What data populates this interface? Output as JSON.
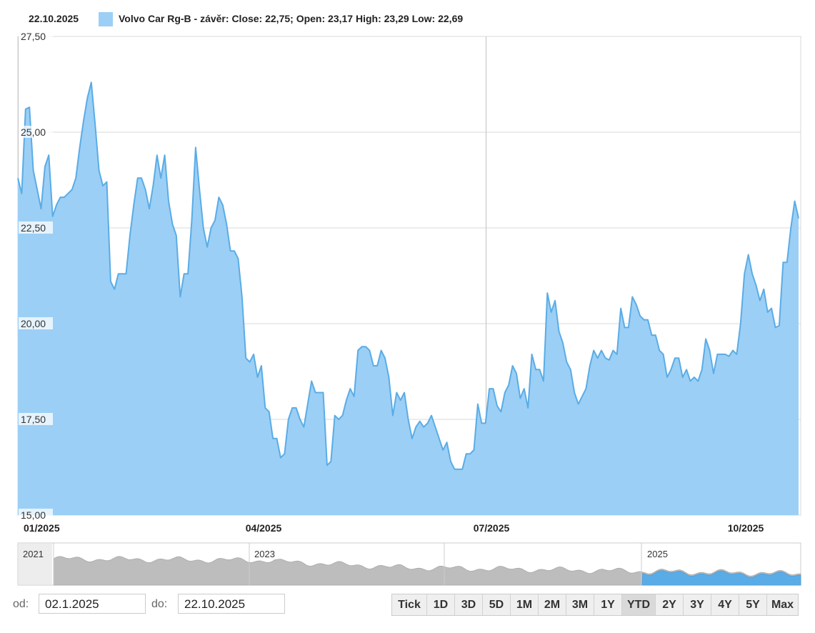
{
  "legend": {
    "date": "22.10.2025",
    "series_label": "Volvo Car Rg-B - závěr:",
    "close_label": "Close: 22,75;",
    "open_label": "Open: 23,17",
    "high_label": "High: 23,29",
    "low_label": "Low: 22,69"
  },
  "colors": {
    "fill": "#9ccff5",
    "line": "#5aace6",
    "grid": "#d8d8d8",
    "navigator": "#bdbdbd"
  },
  "chart_data": {
    "type": "area",
    "title": "Volvo Car Rg-B - závěr",
    "y_ticks": [
      "15,00",
      "17,50",
      "20,00",
      "22,50",
      "25,00",
      "27,50"
    ],
    "x_ticks": [
      "01/2025",
      "04/2025",
      "07/2025",
      "10/2025"
    ],
    "ylim": [
      15,
      27.5
    ],
    "grid": true,
    "x_range": [
      "2025-01-02",
      "2025-10-22"
    ],
    "series": [
      {
        "values": [
          23.8,
          23.4,
          25.6,
          25.65,
          24.0,
          23.5,
          23.0,
          24.1,
          24.4,
          22.8,
          23.1,
          23.3,
          23.3,
          23.4,
          23.5,
          23.8,
          24.6,
          25.3,
          25.9,
          26.3,
          25.2,
          24.0,
          23.6,
          23.7,
          21.1,
          20.9,
          21.3,
          21.3,
          21.3,
          22.3,
          23.1,
          23.8,
          23.8,
          23.5,
          23.0,
          23.6,
          24.4,
          23.8,
          24.4,
          23.2,
          22.6,
          22.3,
          20.7,
          21.3,
          21.3,
          22.7,
          24.6,
          23.5,
          22.5,
          22.0,
          22.5,
          22.7,
          23.3,
          23.1,
          22.6,
          21.9,
          21.9,
          21.7,
          20.7,
          19.1,
          19.0,
          19.2,
          18.6,
          18.9,
          17.8,
          17.7,
          17.0,
          17.0,
          16.5,
          16.6,
          17.5,
          17.8,
          17.8,
          17.5,
          17.3,
          17.9,
          18.5,
          18.2,
          18.2,
          18.2,
          16.3,
          16.4,
          17.6,
          17.5,
          17.6,
          18.0,
          18.3,
          18.1,
          19.3,
          19.4,
          19.4,
          19.3,
          18.9,
          18.9,
          19.3,
          19.1,
          18.6,
          17.6,
          18.2,
          18.0,
          18.2,
          17.5,
          17.0,
          17.3,
          17.45,
          17.3,
          17.4,
          17.6,
          17.3,
          17.0,
          16.7,
          16.9,
          16.4,
          16.2,
          16.2,
          16.2,
          16.6,
          16.6,
          16.7,
          17.9,
          17.4,
          17.4,
          18.3,
          18.3,
          17.85,
          17.7,
          18.2,
          18.4,
          18.9,
          18.7,
          18.05,
          18.3,
          17.8,
          19.2,
          18.8,
          18.8,
          18.5,
          20.8,
          20.3,
          20.6,
          19.8,
          19.5,
          19.0,
          18.8,
          18.2,
          17.9,
          18.1,
          18.3,
          18.9,
          19.3,
          19.1,
          19.3,
          19.1,
          19.05,
          19.3,
          19.2,
          20.4,
          19.9,
          19.9,
          20.7,
          20.5,
          20.2,
          20.1,
          20.1,
          19.7,
          19.7,
          19.3,
          19.2,
          18.6,
          18.8,
          19.1,
          19.1,
          18.6,
          18.8,
          18.5,
          18.6,
          18.5,
          18.8,
          19.6,
          19.3,
          18.7,
          19.2,
          19.2,
          19.2,
          19.15,
          19.3,
          19.2,
          20.0,
          21.3,
          21.8,
          21.3,
          21.0,
          20.6,
          20.9,
          20.3,
          20.4,
          19.9,
          19.95,
          21.6,
          21.6,
          22.5,
          23.2,
          22.75
        ]
      }
    ],
    "navigator": {
      "labels": [
        "2021",
        "2023",
        "2025"
      ]
    }
  },
  "range": {
    "from_label": "od:",
    "from_value": "02.1.2025",
    "to_label": "do:",
    "to_value": "22.10.2025"
  },
  "zoom_buttons": [
    "Tick",
    "1D",
    "3D",
    "5D",
    "1M",
    "2M",
    "3M",
    "1Y",
    "YTD",
    "2Y",
    "3Y",
    "4Y",
    "5Y",
    "Max"
  ],
  "active_zoom": "YTD"
}
